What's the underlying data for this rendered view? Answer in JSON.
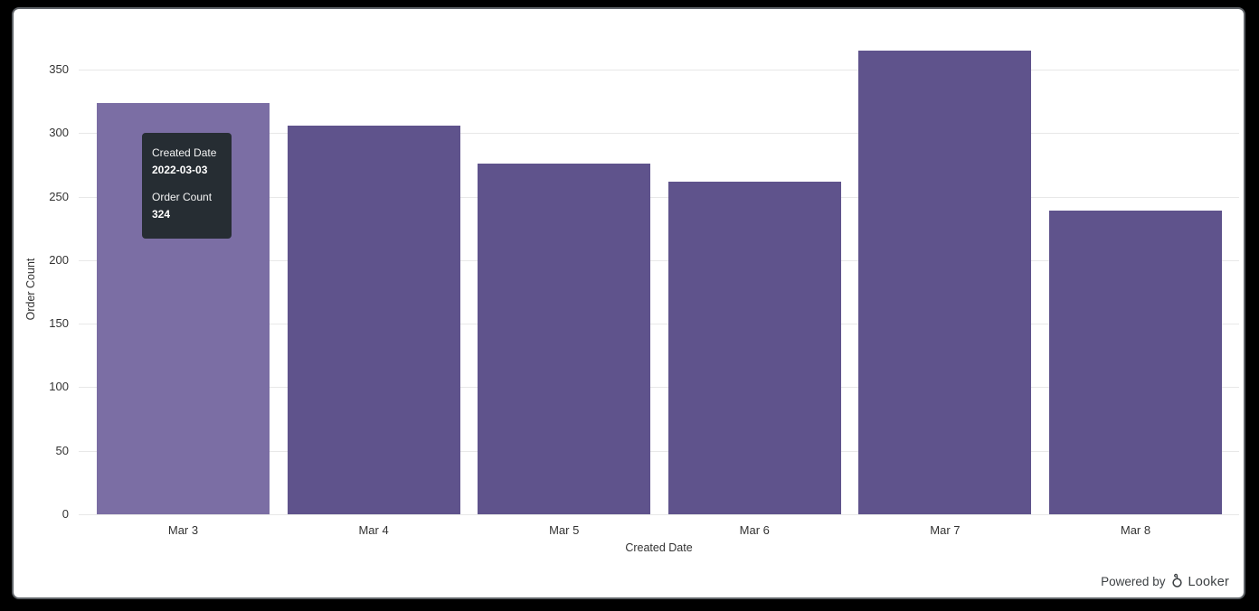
{
  "chart_data": {
    "type": "bar",
    "title": "",
    "categories": [
      "Mar 3",
      "Mar 4",
      "Mar 5",
      "Mar 6",
      "Mar 7",
      "Mar 8"
    ],
    "values": [
      324,
      306,
      276,
      262,
      365,
      239
    ],
    "xlabel": "Created Date",
    "ylabel": "Order Count",
    "ylim": [
      0,
      350
    ],
    "yticks": [
      0,
      50,
      100,
      150,
      200,
      250,
      300,
      350
    ],
    "grid": true,
    "legend_position": "none",
    "hovered_index": 0,
    "bar_color": "#5f538c",
    "bar_hover_color": "#7b6ea4",
    "gridline_color": "#e8e8e8",
    "axis_text_color": "#333333"
  },
  "tooltip": {
    "dimension_label": "Created Date",
    "dimension_value": "2022-03-03",
    "measure_label": "Order Count",
    "measure_value": "324",
    "bg_color": "#262d33",
    "text_color": "#ffffff"
  },
  "footer": {
    "powered_by_label": "Powered by",
    "brand_label": "Looker"
  },
  "colors": {
    "frame_bg": "#000000",
    "card_bg": "#ffffff",
    "card_border": "#5f6368"
  }
}
